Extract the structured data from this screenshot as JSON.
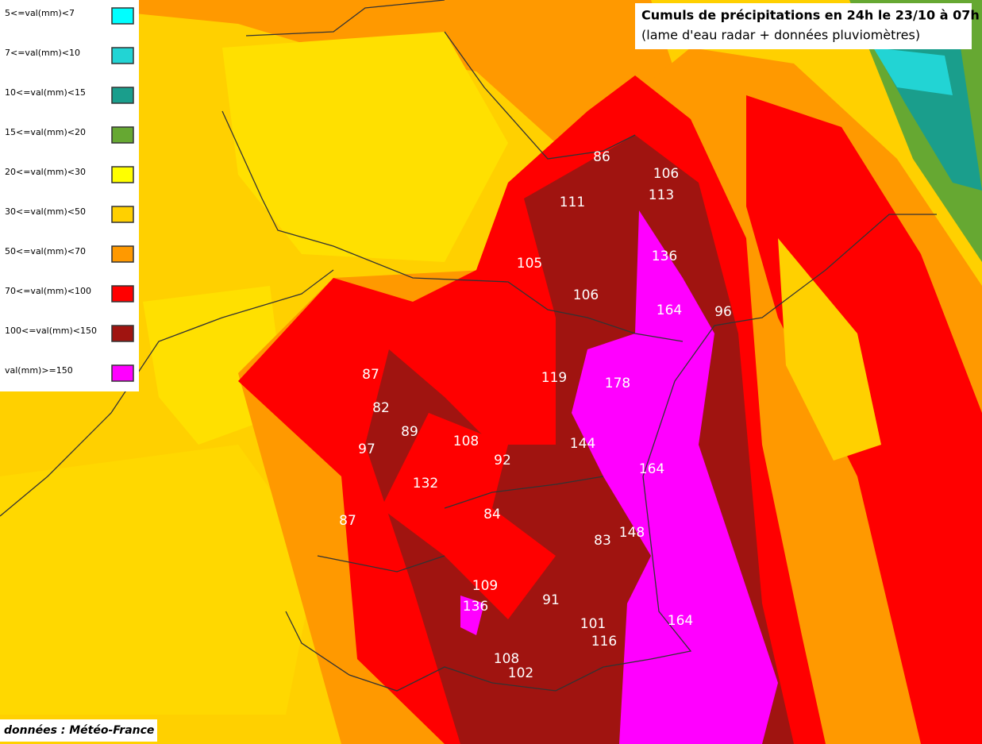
{
  "title": "Cumuls de précipitations en 24h le 23/10 à 07h",
  "subtitle": "(lame d'eau radar + données pluviomètres)",
  "legend": [
    {
      "label": "5<=val(mm)<7",
      "color": "#00ffff"
    },
    {
      "label": "7<=val(mm)<10",
      "color": "#22d4d4"
    },
    {
      "label": "10<=val(mm)<15",
      "color": "#1a9e8c"
    },
    {
      "label": "15<=val(mm)<20",
      "color": "#66a832"
    },
    {
      "label": "20<=val(mm)<30",
      "color": "#ffff00"
    },
    {
      "label": "30<=val(mm)<50",
      "color": "#ffd000"
    },
    {
      "label": "50<=val(mm)<70",
      "color": "#ff9900"
    },
    {
      "label": "70<=val(mm)<100",
      "color": "#ff0000"
    },
    {
      "label": "100<=val(mm)<150",
      "color": "#a01410"
    },
    {
      "label": "val(mm)>=150",
      "color": "#ff00ff"
    }
  ],
  "stations": [
    86,
    106,
    113,
    111,
    136,
    105,
    106,
    164,
    96,
    87,
    119,
    178,
    82,
    89,
    108,
    97,
    92,
    144,
    164,
    132,
    84,
    87,
    83,
    148,
    109,
    91,
    136,
    101,
    164,
    116,
    108,
    102
  ],
  "credit": "données : Météo-France"
}
